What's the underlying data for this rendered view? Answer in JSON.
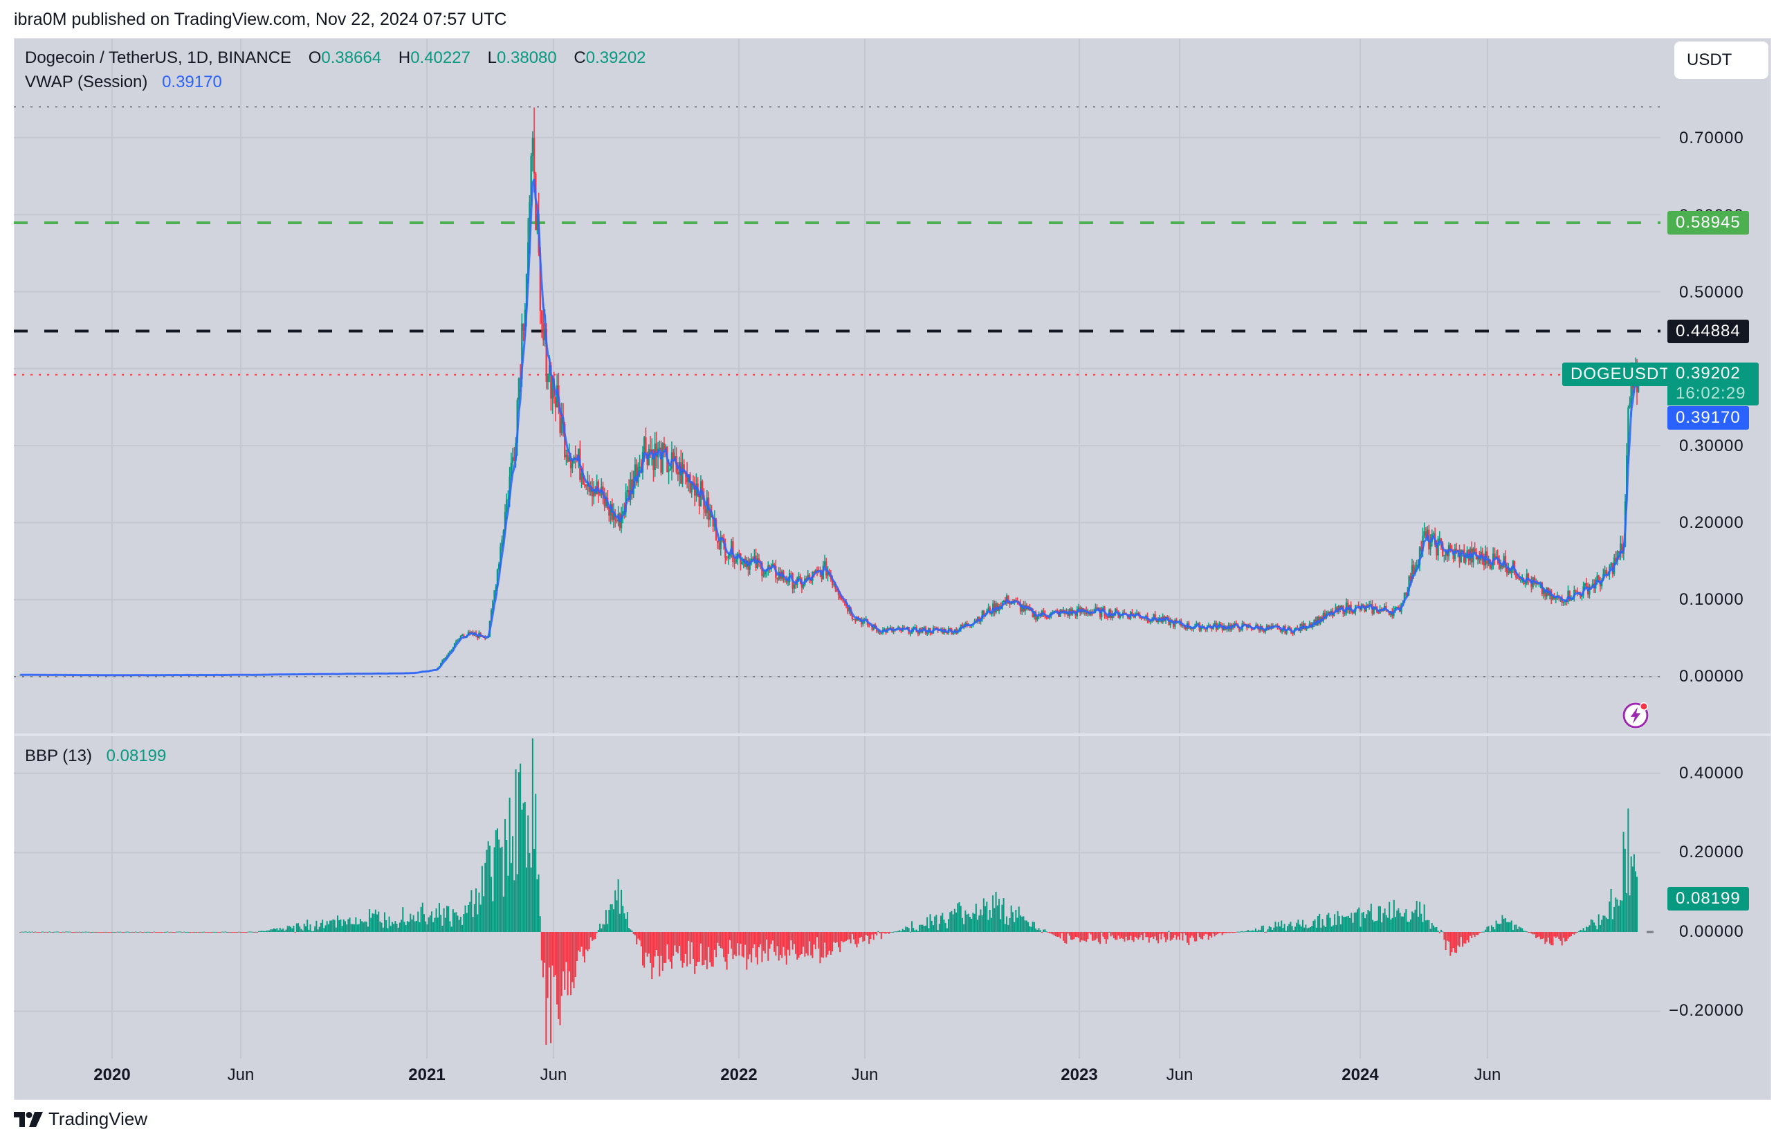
{
  "header": {
    "published": "ibra0M published on TradingView.com, Nov 22, 2024 07:57 UTC"
  },
  "legend": {
    "symbol": "Dogecoin / TetherUS, 1D, BINANCE",
    "o_label": "O",
    "o_value": "0.38664",
    "h_label": "H",
    "h_value": "0.40227",
    "l_label": "L",
    "l_value": "0.38080",
    "c_label": "C",
    "c_value": "0.39202",
    "vwap_label": "VWAP (Session)",
    "vwap_value": "0.39170"
  },
  "currency_button": "USDT",
  "price_axis": {
    "ticks": [
      "0.70000",
      "0.60000",
      "0.50000",
      "0.40000",
      "0.30000",
      "0.20000",
      "0.10000",
      "0.00000"
    ]
  },
  "tags": {
    "green_level": "0.58945",
    "black_level": "0.44884",
    "symbol_tag": "DOGEUSDT",
    "last_price": "0.39202",
    "countdown": "16:02:29",
    "vwap": "0.39170",
    "bbp": "0.08199"
  },
  "bbp_pane": {
    "label": "BBP (13)",
    "value": "0.08199",
    "ticks": [
      "0.40000",
      "0.20000",
      "0.00000",
      "−0.20000"
    ]
  },
  "time_axis": {
    "labels": [
      {
        "text": "2020",
        "bold": true
      },
      {
        "text": "Jun",
        "bold": false
      },
      {
        "text": "2021",
        "bold": true
      },
      {
        "text": "Jun",
        "bold": false
      },
      {
        "text": "2022",
        "bold": true
      },
      {
        "text": "Jun",
        "bold": false
      },
      {
        "text": "2023",
        "bold": true
      },
      {
        "text": "Jun",
        "bold": false
      },
      {
        "text": "2024",
        "bold": true
      },
      {
        "text": "Jun",
        "bold": false
      }
    ]
  },
  "footer": {
    "brand": "TradingView"
  },
  "colors": {
    "bg": "#d1d4dc",
    "up": "#089981",
    "down": "#f23645",
    "vwap": "#2962ff",
    "green_line": "#4caf50",
    "black_line": "#131722"
  },
  "chart_data": [
    {
      "type": "line",
      "title": "Dogecoin / TetherUS, 1D, BINANCE",
      "xlabel": "",
      "ylabel": "USDT",
      "ylim": [
        -0.07,
        0.78
      ],
      "grid": true,
      "x": [
        "2019-09",
        "2020-01",
        "2020-06",
        "2020-12",
        "2021-01",
        "2021-02",
        "2021-03",
        "2021-04",
        "2021-05-08",
        "2021-05",
        "2021-06",
        "2021-08",
        "2021-09",
        "2021-11",
        "2021-12",
        "2022-01",
        "2022-03",
        "2022-04",
        "2022-05",
        "2022-06",
        "2022-09",
        "2022-11",
        "2022-12",
        "2023-02",
        "2023-04",
        "2023-06",
        "2023-08",
        "2023-10",
        "2023-12",
        "2024-02",
        "2024-03",
        "2024-04",
        "2024-06",
        "2024-08",
        "2024-09",
        "2024-10",
        "2024-11-05",
        "2024-11-12",
        "2024-11-22"
      ],
      "series": [
        {
          "name": "DOGEUSDT close",
          "values": [
            0.0025,
            0.002,
            0.0025,
            0.0045,
            0.009,
            0.055,
            0.053,
            0.3,
            0.69,
            0.45,
            0.3,
            0.2,
            0.3,
            0.25,
            0.17,
            0.15,
            0.12,
            0.14,
            0.08,
            0.06,
            0.06,
            0.1,
            0.08,
            0.085,
            0.08,
            0.065,
            0.065,
            0.06,
            0.09,
            0.085,
            0.18,
            0.16,
            0.15,
            0.1,
            0.11,
            0.13,
            0.17,
            0.38,
            0.392
          ]
        },
        {
          "name": "VWAP (Session)",
          "values": [
            0.0025,
            0.002,
            0.0025,
            0.0045,
            0.009,
            0.055,
            0.053,
            0.3,
            0.62,
            0.45,
            0.3,
            0.2,
            0.3,
            0.25,
            0.17,
            0.15,
            0.12,
            0.14,
            0.08,
            0.06,
            0.06,
            0.1,
            0.08,
            0.085,
            0.08,
            0.065,
            0.065,
            0.06,
            0.09,
            0.085,
            0.18,
            0.16,
            0.15,
            0.1,
            0.11,
            0.13,
            0.17,
            0.38,
            0.3917
          ]
        }
      ],
      "annotations": [
        {
          "type": "hline",
          "value": 0.58945,
          "style": "dashed",
          "color": "#4caf50"
        },
        {
          "type": "hline",
          "value": 0.44884,
          "style": "dashed",
          "color": "#131722"
        },
        {
          "type": "hline",
          "value": 0.39202,
          "style": "dotted",
          "color": "#f23645",
          "label": "DOGEUSDT"
        },
        {
          "type": "hline",
          "value": 0.74,
          "style": "dotted",
          "color": "#787b86"
        },
        {
          "type": "hline",
          "value": 0.0,
          "style": "dotted",
          "color": "#787b86"
        }
      ],
      "yticks": [
        0.0,
        0.1,
        0.2,
        0.3,
        0.4,
        0.5,
        0.6,
        0.7
      ],
      "xticks": [
        "2020",
        "Jun",
        "2021",
        "Jun",
        "2022",
        "Jun",
        "2023",
        "Jun",
        "2024",
        "Jun"
      ],
      "ohlc_last": {
        "open": 0.38664,
        "high": 0.40227,
        "low": 0.3808,
        "close": 0.39202
      }
    },
    {
      "type": "bar",
      "title": "BBP (13)",
      "ylim": [
        -0.28,
        0.45
      ],
      "yticks": [
        -0.2,
        0.0,
        0.2,
        0.4
      ],
      "x": [
        "2019-09",
        "2020-06",
        "2021-01",
        "2021-02",
        "2021-04",
        "2021-05-08",
        "2021-05-20",
        "2021-06",
        "2021-08",
        "2021-09",
        "2021-12",
        "2022-04",
        "2022-10-29",
        "2023-01",
        "2023-06",
        "2024-03",
        "2024-04",
        "2024-06",
        "2024-08",
        "2024-10",
        "2024-11-12",
        "2024-11-22"
      ],
      "values": [
        0.0,
        0.0,
        0.07,
        0.04,
        0.37,
        0.42,
        -0.25,
        -0.18,
        0.12,
        -0.1,
        -0.08,
        -0.06,
        0.09,
        -0.02,
        -0.02,
        0.08,
        -0.06,
        0.04,
        -0.04,
        0.05,
        0.29,
        0.08199
      ],
      "last_value": 0.08199
    }
  ]
}
